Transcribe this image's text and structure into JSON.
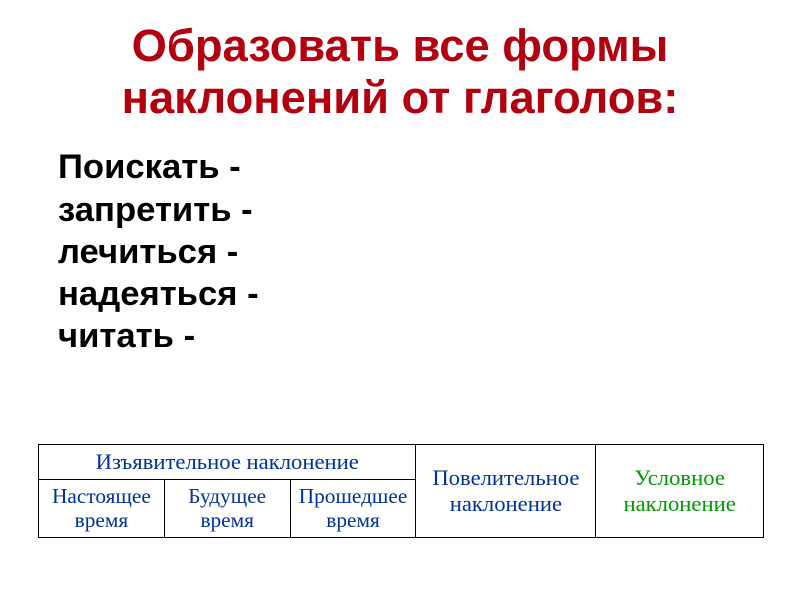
{
  "title": {
    "line1": "Образовать все формы",
    "line2": "наклонений от глаголов:",
    "color": "#b3000f",
    "fontsize_pt": 34
  },
  "verbs": {
    "items": [
      "Поискать -",
      "запретить -",
      "лечиться -",
      "надеяться -",
      "читать -"
    ],
    "fontsize_pt": 26
  },
  "table": {
    "header_fontsize_pt": 17,
    "tense_fontsize_pt": 16,
    "indicative": {
      "label": "Изъявительное наклонение",
      "color": "#003399"
    },
    "imperative": {
      "label_l1": "Повелительное",
      "label_l2": "наклонение",
      "color": "#003399"
    },
    "conditional": {
      "label_l1": "Условное",
      "label_l2": "наклонение",
      "color": "#009900"
    },
    "tenses": {
      "present_l1": "Настоящее",
      "present_l2": "время",
      "future_l1": "Будущее",
      "future_l2": "время",
      "past_l1": "Прошедшее",
      "past_l2": "время",
      "color": "#003399"
    },
    "col_widths": {
      "tense": 126,
      "imper": 180,
      "cond": 168
    }
  }
}
